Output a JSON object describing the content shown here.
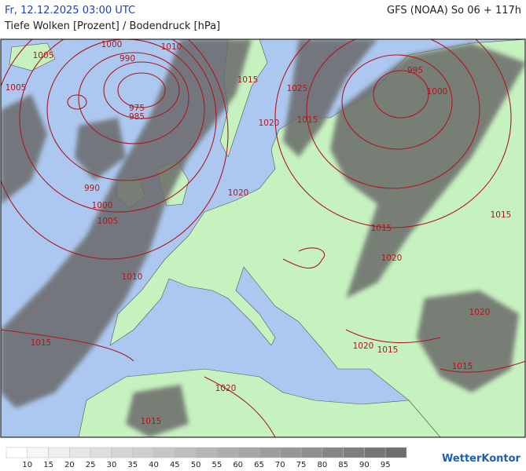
{
  "header": {
    "valid_time": "Fr, 12.12.2025 03:00 UTC",
    "model_run": "GFS (NOAA) So 06 + 117h",
    "subtitle": "Tiefe Wolken [Prozent] / Bodendruck [hPa]"
  },
  "isobar_labels": [
    "1000",
    "1005",
    "1010",
    "990",
    "1015",
    "1025",
    "995",
    "1000",
    "1005",
    "975",
    "985",
    "1020",
    "1015",
    "990",
    "1000",
    "1005",
    "1020",
    "1015",
    "1015",
    "1020",
    "1010",
    "1020",
    "1015",
    "1020",
    "1015",
    "1015",
    "1020",
    "1015"
  ],
  "legend": {
    "labels": [
      10,
      15,
      20,
      25,
      30,
      35,
      40,
      45,
      50,
      55,
      60,
      65,
      70,
      75,
      80,
      85,
      90,
      95
    ],
    "colors": [
      "#ffffff",
      "#f6f6f6",
      "#eeeeee",
      "#e6e6e6",
      "#dedede",
      "#d6d6d6",
      "#cecece",
      "#c6c6c6",
      "#bebebe",
      "#b6b6b6",
      "#aeaeae",
      "#a6a6a6",
      "#9e9e9e",
      "#969696",
      "#8e8e8e",
      "#868686",
      "#7e7e7e",
      "#767676",
      "#6e6e6e"
    ]
  },
  "footer": {
    "brand": "WetterKontor"
  }
}
